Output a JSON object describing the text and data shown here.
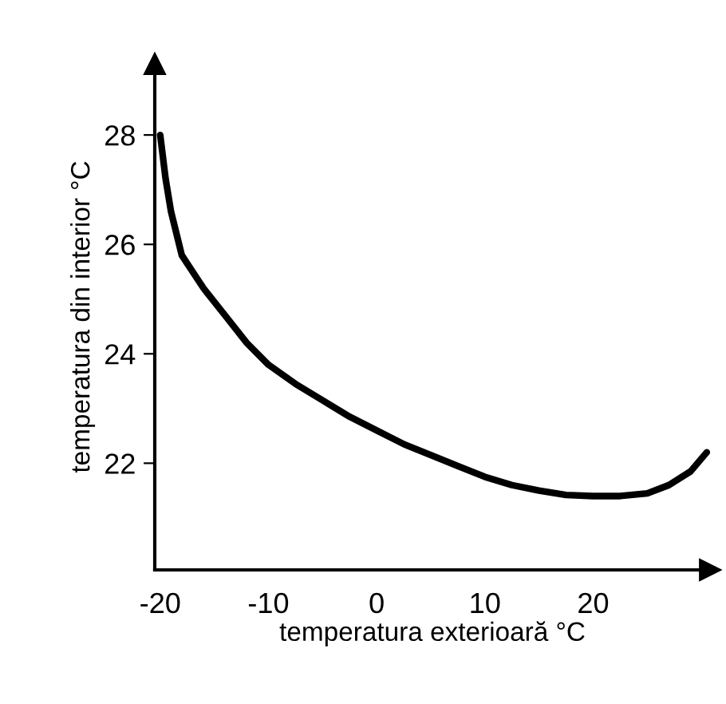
{
  "chart_data": {
    "type": "line",
    "xlabel": "temperatura exterioară °C",
    "ylabel": "temperatura din interior °C",
    "x": [
      -20,
      -19.5,
      -19,
      -18,
      -16,
      -14,
      -12,
      -10,
      -7.5,
      -5,
      -2.5,
      0,
      2.5,
      5,
      7.5,
      10,
      12.5,
      15,
      17.5,
      20,
      22.5,
      25,
      27,
      29,
      30.5
    ],
    "series": [
      {
        "color": "#000000",
        "values": [
          28,
          27.2,
          26.6,
          25.8,
          25.2,
          24.7,
          24.2,
          23.8,
          23.45,
          23.15,
          22.85,
          22.6,
          22.35,
          22.15,
          21.95,
          21.75,
          21.6,
          21.5,
          21.42,
          21.4,
          21.4,
          21.45,
          21.6,
          21.85,
          22.2
        ]
      }
    ],
    "xlim": [
      -20.5,
      30.8
    ],
    "ylim": [
      20.05,
      29.3
    ],
    "xticks": [
      -20,
      -10,
      0,
      10,
      20
    ],
    "yticks": [
      22,
      24,
      26,
      28
    ],
    "grid": false,
    "legend": false,
    "marker": "none",
    "line_style": "solid"
  }
}
